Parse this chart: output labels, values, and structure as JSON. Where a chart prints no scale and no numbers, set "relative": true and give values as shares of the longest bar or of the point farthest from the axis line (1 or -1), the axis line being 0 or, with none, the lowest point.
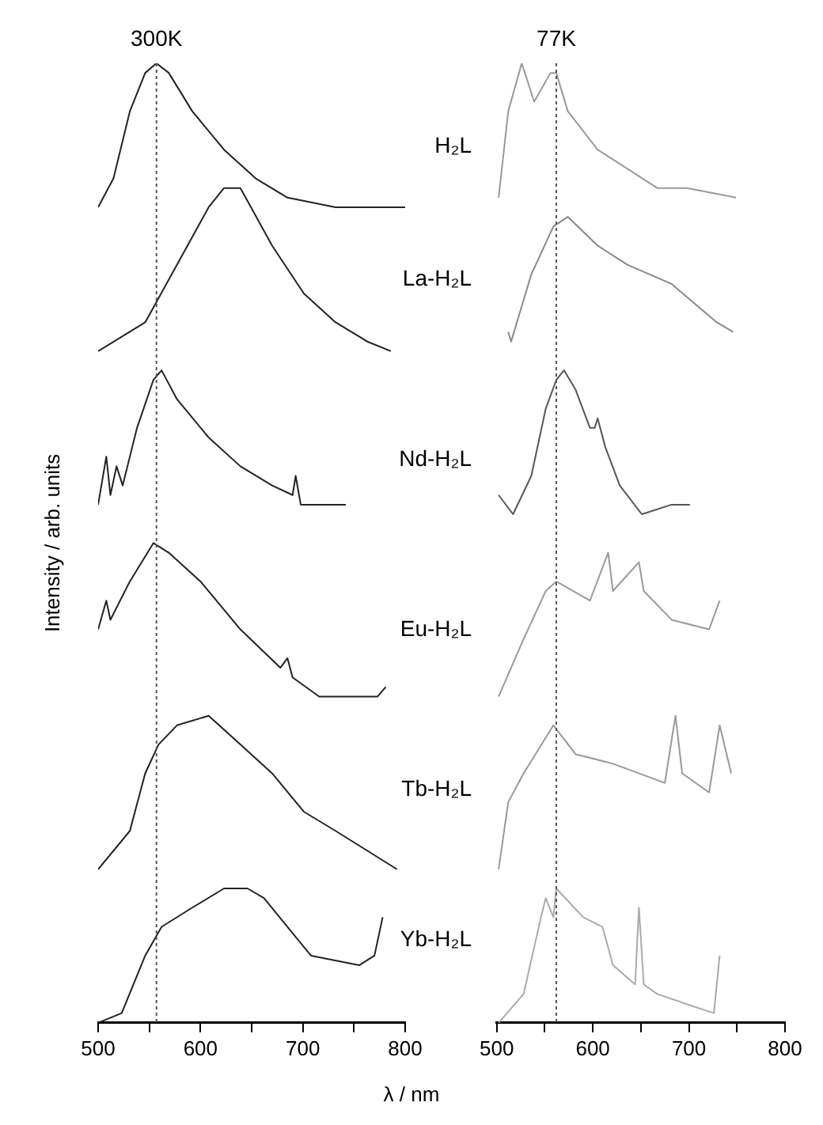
{
  "chart_data": [
    {
      "type": "line",
      "title": "300K",
      "ylabel": "Intensity / arb. units",
      "xlabel": "λ / nm",
      "relative": true,
      "marker": "none",
      "xlim": [
        500,
        800
      ],
      "xticks": [
        500,
        {
          "value": 550,
          "label": null
        },
        600,
        {
          "value": 650,
          "label": null
        },
        700,
        {
          "value": 750,
          "label": null
        },
        800
      ],
      "ref_lines": [
        {
          "axis": "x",
          "value": 557,
          "line_style": "dotted",
          "color": "#555555"
        }
      ],
      "series": [
        {
          "name": "H₂L",
          "color": "#222222",
          "x": [
            500,
            515,
            531,
            546,
            557,
            569,
            592,
            623,
            654,
            685,
            732,
            800
          ],
          "values": [
            0.85,
            0.88,
            0.95,
            0.99,
            1.0,
            0.99,
            0.95,
            0.91,
            0.88,
            0.86,
            0.85,
            0.85
          ]
        },
        {
          "name": "La-H₂L",
          "color": "#222222",
          "x": [
            500,
            546,
            577,
            608,
            623,
            639,
            670,
            701,
            732,
            763,
            786
          ],
          "values": [
            0.7,
            0.73,
            0.79,
            0.85,
            0.87,
            0.87,
            0.81,
            0.76,
            0.73,
            0.71,
            0.7
          ]
        },
        {
          "name": "Nd-H₂L",
          "color": "#222222",
          "x": [
            500,
            508,
            512,
            518,
            524,
            538,
            554,
            562,
            577,
            608,
            639,
            670,
            690,
            693,
            698,
            742
          ],
          "values": [
            0.54,
            0.59,
            0.55,
            0.58,
            0.56,
            0.62,
            0.67,
            0.68,
            0.65,
            0.61,
            0.58,
            0.56,
            0.55,
            0.57,
            0.54,
            0.54
          ]
        },
        {
          "name": "Eu-H₂L",
          "color": "#222222",
          "x": [
            500,
            508,
            512,
            531,
            554,
            569,
            600,
            639,
            678,
            685,
            690,
            716,
            773,
            781
          ],
          "values": [
            0.41,
            0.44,
            0.42,
            0.46,
            0.5,
            0.49,
            0.46,
            0.41,
            0.37,
            0.38,
            0.36,
            0.34,
            0.34,
            0.35
          ]
        },
        {
          "name": "Tb-H₂L",
          "color": "#222222",
          "x": [
            500,
            531,
            546,
            559,
            577,
            608,
            639,
            670,
            701,
            732,
            792
          ],
          "values": [
            0.16,
            0.2,
            0.26,
            0.29,
            0.31,
            0.32,
            0.29,
            0.26,
            0.22,
            0.2,
            0.16
          ]
        },
        {
          "name": "Yb-H₂L",
          "color": "#222222",
          "x": [
            500,
            523,
            546,
            562,
            592,
            623,
            646,
            662,
            685,
            708,
            755,
            770,
            778
          ],
          "values": [
            0,
            0.01,
            0.07,
            0.1,
            0.12,
            0.14,
            0.14,
            0.13,
            0.1,
            0.07,
            0.06,
            0.07,
            0.11
          ]
        }
      ]
    },
    {
      "type": "line",
      "title": "77K",
      "relative": true,
      "marker": "none",
      "xlim": [
        500,
        800
      ],
      "xticks": [
        500,
        {
          "value": 550,
          "label": null
        },
        600,
        {
          "value": 650,
          "label": null
        },
        700,
        {
          "value": 750,
          "label": null
        },
        800
      ],
      "ref_lines": [
        {
          "axis": "x",
          "value": 562,
          "line_style": "dotted",
          "color": "#555555"
        }
      ],
      "series": [
        {
          "color": "#999999",
          "x": [
            502,
            512,
            526,
            539,
            556,
            562,
            574,
            605,
            636,
            667,
            698,
            749
          ],
          "values": [
            0.86,
            0.95,
            1.0,
            0.96,
            0.99,
            0.99,
            0.95,
            0.91,
            0.89,
            0.87,
            0.87,
            0.86
          ]
        },
        {
          "color": "#888888",
          "x": [
            512,
            515,
            536,
            559,
            574,
            605,
            636,
            682,
            729,
            746
          ],
          "values": [
            0.72,
            0.71,
            0.78,
            0.83,
            0.84,
            0.81,
            0.79,
            0.77,
            0.73,
            0.72
          ]
        },
        {
          "color": "#555555",
          "x": [
            502,
            517,
            536,
            551,
            562,
            570,
            582,
            597,
            602,
            605,
            613,
            628,
            651,
            682,
            701
          ],
          "values": [
            0.55,
            0.53,
            0.57,
            0.64,
            0.67,
            0.68,
            0.66,
            0.62,
            0.62,
            0.63,
            0.6,
            0.56,
            0.53,
            0.54,
            0.54
          ]
        },
        {
          "color": "#999999",
          "x": [
            502,
            528,
            551,
            562,
            597,
            616,
            621,
            648,
            653,
            682,
            721,
            732
          ],
          "values": [
            0.34,
            0.4,
            0.45,
            0.46,
            0.44,
            0.49,
            0.45,
            0.48,
            0.45,
            0.42,
            0.41,
            0.44
          ]
        },
        {
          "color": "#999999",
          "x": [
            502,
            512,
            528,
            559,
            582,
            621,
            675,
            686,
            693,
            721,
            732,
            744
          ],
          "values": [
            0.16,
            0.23,
            0.26,
            0.31,
            0.28,
            0.27,
            0.25,
            0.32,
            0.26,
            0.24,
            0.31,
            0.26
          ]
        },
        {
          "color": "#aaaaaa",
          "x": [
            502,
            528,
            546,
            551,
            559,
            562,
            590,
            610,
            621,
            644,
            648,
            653,
            667,
            696,
            726,
            732
          ],
          "values": [
            0,
            0.03,
            0.11,
            0.13,
            0.11,
            0.14,
            0.11,
            0.1,
            0.06,
            0.04,
            0.12,
            0.04,
            0.03,
            0.02,
            0.01,
            0.07
          ]
        }
      ]
    }
  ]
}
